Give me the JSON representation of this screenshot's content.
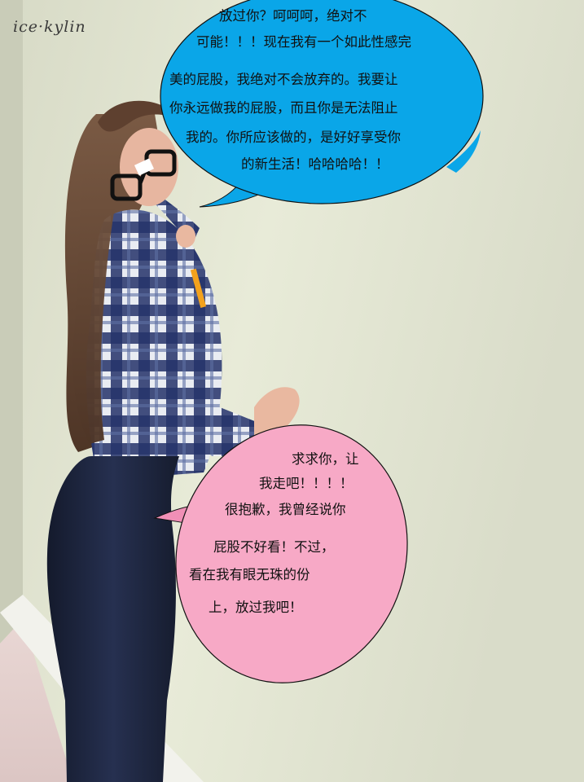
{
  "watermark": "ice·kylin",
  "bubble_top": {
    "lines": [
      "放过你？呵呵呵，绝对不",
      "可能！！！现在我有一个如此性感完",
      "美的屁股，我绝对不会放弃的。我要让",
      "你永远做我的屁股，而且你是无法阻止",
      "我的。你所应该做的，是好好享受你",
      "的新生活！哈哈哈哈！！"
    ],
    "fill": "#0aa6e8"
  },
  "bubble_bottom": {
    "lines": [
      "求求你，让",
      "我走吧！！！！",
      "很抱歉，我曾经说你",
      "屁股不好看！不过，",
      "看在我有眼无珠的份",
      "上，放过我吧！"
    ],
    "fill": "#f7a9c6"
  },
  "colors": {
    "wall": "#e4e7d2",
    "floor": "#e6d3d0",
    "jeans": "#1c2236",
    "shirt_navy": "#1f2d5e",
    "hair": "#6b4a36"
  }
}
